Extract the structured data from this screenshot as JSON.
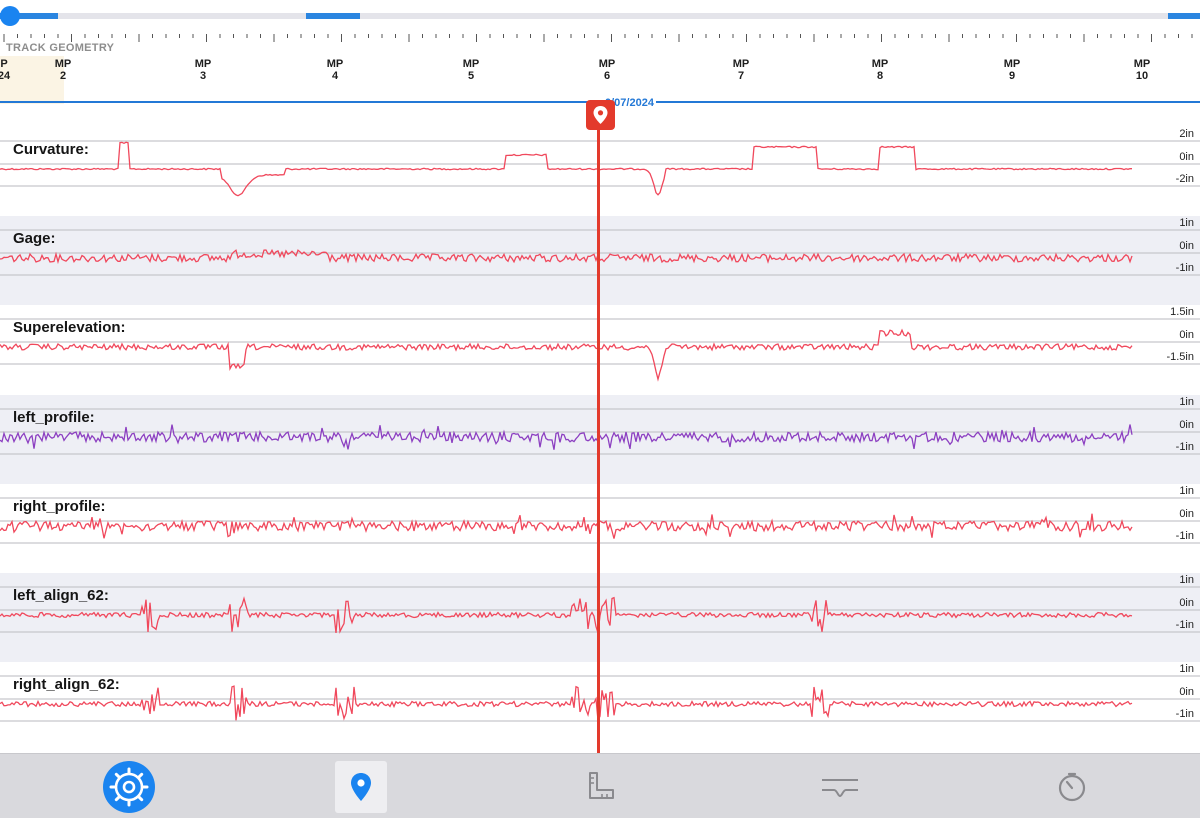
{
  "section_label": "TRACK GEOMETRY",
  "date": "10/07/2024",
  "date_visible": "0/07/2024",
  "mileposts": [
    {
      "line1": "P",
      "line2": "24"
    },
    {
      "line1": "MP",
      "line2": "2"
    },
    {
      "line1": "MP",
      "line2": "3"
    },
    {
      "line1": "MP",
      "line2": "4"
    },
    {
      "line1": "MP",
      "line2": "5"
    },
    {
      "line1": "MP",
      "line2": "6"
    },
    {
      "line1": "MP",
      "line2": "7"
    },
    {
      "line1": "MP",
      "line2": "8"
    },
    {
      "line1": "MP",
      "line2": "9"
    },
    {
      "line1": "MP",
      "line2": "10"
    }
  ],
  "channels": [
    {
      "name": "Curvature:",
      "ticks": [
        "2in",
        "0in",
        "-2in"
      ],
      "color": "#f0485c",
      "style": "smooth"
    },
    {
      "name": "Gage:",
      "ticks": [
        "1in",
        "0in",
        "-1in"
      ],
      "color": "#f0485c",
      "style": "noisy"
    },
    {
      "name": "Superelevation:",
      "ticks": [
        "1.5in",
        "0in",
        "-1.5in"
      ],
      "color": "#f0485c",
      "style": "smooth-noisy"
    },
    {
      "name": "left_profile:",
      "ticks": [
        "1in",
        "0in",
        "-1in"
      ],
      "color": "#8c3fc1",
      "style": "dense"
    },
    {
      "name": "right_profile:",
      "ticks": [
        "1in",
        "0in",
        "-1in"
      ],
      "color": "#f0485c",
      "style": "dense"
    },
    {
      "name": "left_align_62:",
      "ticks": [
        "1in",
        "0in",
        "-1in"
      ],
      "color": "#f0485c",
      "style": "sparse"
    },
    {
      "name": "right_align_62:",
      "ticks": [
        "1in",
        "0in",
        "-1in"
      ],
      "color": "#f0485c",
      "style": "sparse"
    }
  ],
  "bottom_nav": [
    {
      "name": "settings-gear-icon",
      "active": true
    },
    {
      "name": "location-pin-icon",
      "active": false,
      "selected": true
    },
    {
      "name": "ruler-measure-icon",
      "active": false
    },
    {
      "name": "track-profile-icon",
      "active": false
    },
    {
      "name": "timer-icon",
      "active": false
    }
  ],
  "colors": {
    "accent": "#1a84f0",
    "cursor": "#e33a2c",
    "trace": "#f0485c",
    "trace_alt": "#8c3fc1"
  }
}
